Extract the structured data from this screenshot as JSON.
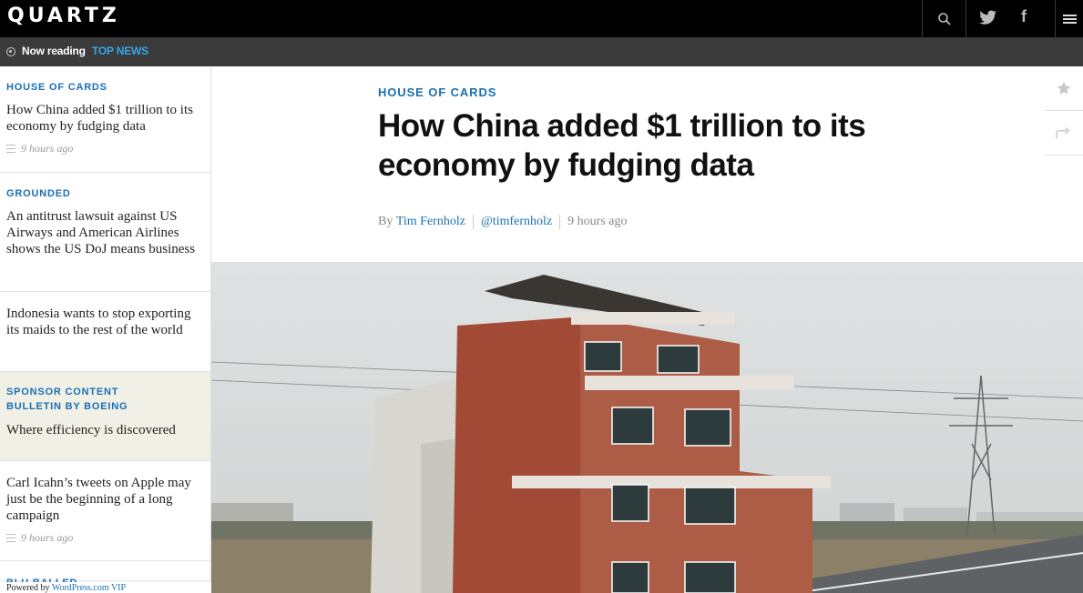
{
  "header": {
    "logo": "QUARTZ",
    "facebook_glyph": "f",
    "icons": [
      "search-icon",
      "twitter-icon",
      "facebook-icon",
      "menu-icon"
    ],
    "background": "#000000"
  },
  "now_reading": {
    "label": "Now reading",
    "section": "TOP NEWS",
    "section_color": "#37a6e6"
  },
  "sidebar": {
    "items": [
      {
        "kicker": "HOUSE OF CARDS",
        "title": "How China added $1 trillion to its economy by fudging data",
        "time": "9 hours ago"
      },
      {
        "kicker": "GROUNDED",
        "title": "An antitrust lawsuit against US Airways and American Airlines shows the US DoJ means business"
      },
      {
        "title": "Indonesia wants to stop exporting its maids to the rest of the world"
      },
      {
        "kicker": "SPONSOR CONTENT",
        "kicker2": "BULLETIN BY BOEING",
        "title": "Where efficiency is discovered"
      },
      {
        "title": "Carl Icahn’s tweets on Apple may just be the beginning of a long campaign",
        "time": "9 hours ago"
      },
      {
        "kicker": "BLU BALLED"
      }
    ],
    "powered_by": "Powered by",
    "powered_link": "WordPress.com VIP"
  },
  "article": {
    "kicker": "HOUSE OF CARDS",
    "headline": "How China added $1 trillion to its economy by fudging data",
    "by": "By",
    "author": "Tim Fernholz",
    "handle": "@timfernholz",
    "time": "9 hours ago"
  },
  "tools": [
    "star-icon",
    "share-icon"
  ],
  "colors": {
    "accent": "#1a6fb3",
    "sponsor_bg": "#f1f0e6"
  }
}
